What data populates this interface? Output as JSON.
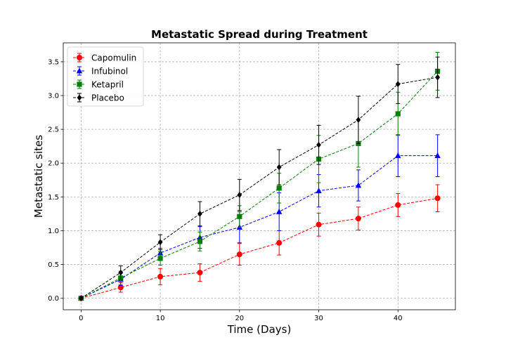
{
  "chart_data": {
    "type": "line",
    "title": "Metastatic Spread during Treatment",
    "xlabel": "Time (Days)",
    "ylabel": "Metastatic sites",
    "xlim": [
      -2.25,
      47.25
    ],
    "ylim": [
      -0.17,
      3.78
    ],
    "xticks": [
      0,
      10,
      20,
      30,
      40
    ],
    "yticks": [
      0.0,
      0.5,
      1.0,
      1.5,
      2.0,
      2.5,
      3.0,
      3.5
    ],
    "xtick_labels": [
      "0",
      "10",
      "20",
      "30",
      "40"
    ],
    "ytick_labels": [
      "0.0",
      "0.5",
      "1.0",
      "1.5",
      "2.0",
      "2.5",
      "3.0",
      "3.5"
    ],
    "grid": true,
    "legend_position": "top-left",
    "x": [
      0,
      5,
      10,
      15,
      20,
      25,
      30,
      35,
      40,
      45
    ],
    "series": [
      {
        "name": "Capomulin",
        "color": "#ff0000",
        "marker": "circle",
        "values": [
          0.0,
          0.16,
          0.32,
          0.38,
          0.65,
          0.82,
          1.09,
          1.18,
          1.38,
          1.48
        ],
        "errors": [
          0.0,
          0.07,
          0.12,
          0.13,
          0.16,
          0.18,
          0.17,
          0.17,
          0.17,
          0.2
        ]
      },
      {
        "name": "Infubinol",
        "color": "#0000ff",
        "marker": "triangle",
        "values": [
          0.0,
          0.28,
          0.67,
          0.9,
          1.05,
          1.28,
          1.59,
          1.67,
          2.11,
          2.11
        ],
        "errors": [
          0.0,
          0.09,
          0.07,
          0.16,
          0.23,
          0.28,
          0.24,
          0.23,
          0.31,
          0.31
        ]
      },
      {
        "name": "Ketapril",
        "color": "#008000",
        "marker": "square",
        "values": [
          0.0,
          0.3,
          0.59,
          0.84,
          1.21,
          1.63,
          2.06,
          2.29,
          2.73,
          3.36
        ],
        "errors": [
          0.0,
          0.1,
          0.1,
          0.14,
          0.16,
          0.22,
          0.35,
          0.35,
          0.32,
          0.28
        ]
      },
      {
        "name": "Placebo",
        "color": "#000000",
        "marker": "diamond",
        "values": [
          0.0,
          0.38,
          0.83,
          1.25,
          1.53,
          1.94,
          2.27,
          2.64,
          3.17,
          3.27
        ],
        "errors": [
          0.0,
          0.1,
          0.11,
          0.18,
          0.23,
          0.26,
          0.29,
          0.35,
          0.29,
          0.3
        ]
      }
    ]
  }
}
